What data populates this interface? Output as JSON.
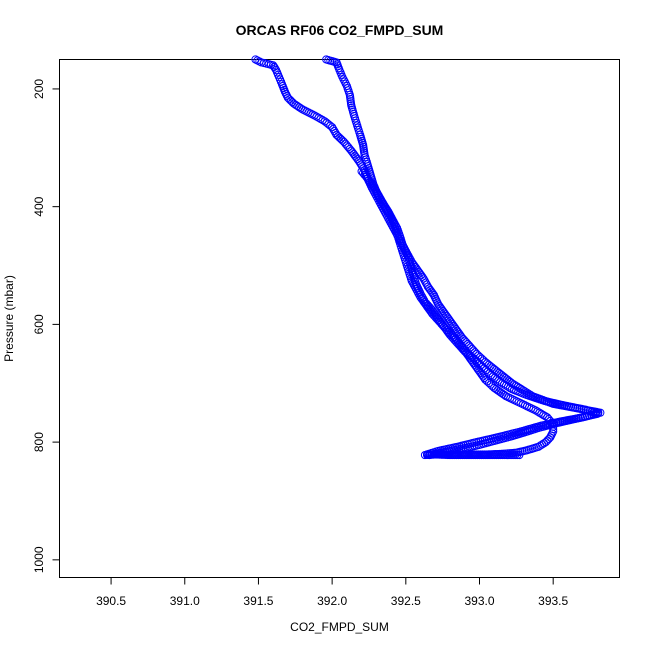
{
  "chart_data": {
    "type": "scatter",
    "title": "ORCAS RF06 CO2_FMPD_SUM",
    "xlabel": "CO2_FMPD_SUM",
    "ylabel": "Pressure (mbar)",
    "xlim": [
      390.15,
      393.95
    ],
    "ylim": [
      1030,
      150
    ],
    "x_ticks": [
      390.5,
      391.0,
      391.5,
      392.0,
      392.5,
      393.0,
      393.5
    ],
    "x_tick_labels": [
      "390.5",
      "391.0",
      "391.5",
      "392.0",
      "392.5",
      "393.0",
      "393.5"
    ],
    "y_ticks": [
      200,
      400,
      600,
      800,
      1000
    ],
    "y_tick_labels": [
      "200",
      "400",
      "600",
      "800",
      "1000"
    ],
    "y_reversed": true,
    "marker": "open-circle",
    "color": "#0000ff",
    "grid": false,
    "series": [
      {
        "values": [
          [
            391.48,
            150
          ],
          [
            391.52,
            155
          ],
          [
            391.57,
            158
          ],
          [
            391.6,
            160
          ],
          [
            391.62,
            168
          ],
          [
            391.64,
            180
          ],
          [
            391.66,
            192
          ],
          [
            391.68,
            205
          ],
          [
            391.7,
            215
          ],
          [
            391.74,
            225
          ],
          [
            391.8,
            235
          ],
          [
            391.88,
            245
          ],
          [
            391.95,
            255
          ],
          [
            392.0,
            265
          ],
          [
            392.03,
            278
          ],
          [
            392.08,
            290
          ],
          [
            392.13,
            305
          ],
          [
            392.18,
            322
          ],
          [
            392.22,
            338
          ],
          [
            392.24,
            352
          ],
          [
            392.27,
            368
          ],
          [
            392.3,
            382
          ],
          [
            392.33,
            396
          ],
          [
            392.36,
            410
          ],
          [
            392.39,
            424
          ],
          [
            392.42,
            438
          ],
          [
            392.45,
            452
          ],
          [
            392.48,
            466
          ],
          [
            392.51,
            480
          ],
          [
            392.54,
            494
          ],
          [
            392.58,
            508
          ],
          [
            392.62,
            522
          ],
          [
            392.65,
            536
          ],
          [
            392.69,
            550
          ],
          [
            392.72,
            566
          ],
          [
            392.76,
            580
          ],
          [
            392.8,
            594
          ],
          [
            392.84,
            608
          ],
          [
            392.88,
            622
          ],
          [
            392.93,
            636
          ],
          [
            392.98,
            650
          ],
          [
            393.04,
            664
          ],
          [
            393.12,
            680
          ],
          [
            393.22,
            700
          ],
          [
            393.36,
            722
          ],
          [
            393.5,
            735
          ],
          [
            393.65,
            742
          ],
          [
            393.82,
            750
          ],
          [
            393.7,
            758
          ],
          [
            393.55,
            765
          ],
          [
            393.42,
            772
          ],
          [
            393.28,
            782
          ],
          [
            393.12,
            792
          ],
          [
            392.98,
            800
          ],
          [
            392.85,
            808
          ],
          [
            392.72,
            815
          ],
          [
            392.63,
            822
          ],
          [
            392.7,
            821
          ],
          [
            392.8,
            822
          ],
          [
            392.9,
            822
          ],
          [
            393.0,
            822
          ],
          [
            393.1,
            822
          ],
          [
            393.2,
            822
          ],
          [
            393.27,
            822
          ]
        ]
      },
      {
        "values": [
          [
            391.96,
            150
          ],
          [
            392.03,
            155
          ],
          [
            392.05,
            168
          ],
          [
            392.07,
            180
          ],
          [
            392.1,
            195
          ],
          [
            392.12,
            210
          ],
          [
            392.13,
            228
          ],
          [
            392.15,
            246
          ],
          [
            392.17,
            262
          ],
          [
            392.19,
            278
          ],
          [
            392.21,
            295
          ],
          [
            392.22,
            312
          ],
          [
            392.24,
            328
          ],
          [
            392.26,
            345
          ],
          [
            392.28,
            362
          ],
          [
            392.31,
            380
          ],
          [
            392.35,
            398
          ],
          [
            392.39,
            414
          ],
          [
            392.42,
            430
          ],
          [
            392.44,
            446
          ],
          [
            392.46,
            462
          ],
          [
            392.48,
            478
          ],
          [
            392.5,
            494
          ],
          [
            392.52,
            510
          ],
          [
            392.54,
            526
          ],
          [
            392.57,
            540
          ],
          [
            392.6,
            554
          ],
          [
            392.64,
            568
          ],
          [
            392.68,
            582
          ],
          [
            392.73,
            596
          ],
          [
            392.78,
            610
          ],
          [
            392.84,
            624
          ],
          [
            392.88,
            638
          ],
          [
            392.92,
            652
          ],
          [
            392.96,
            666
          ],
          [
            393.0,
            680
          ],
          [
            393.04,
            694
          ],
          [
            393.1,
            708
          ],
          [
            393.18,
            722
          ],
          [
            393.28,
            734
          ],
          [
            393.38,
            746
          ],
          [
            393.46,
            758
          ],
          [
            393.5,
            770
          ],
          [
            393.5,
            782
          ],
          [
            393.48,
            792
          ],
          [
            393.45,
            800
          ],
          [
            393.4,
            808
          ],
          [
            393.32,
            814
          ],
          [
            393.25,
            818
          ],
          [
            393.15,
            820
          ],
          [
            393.05,
            821
          ],
          [
            392.95,
            821
          ],
          [
            392.85,
            821
          ],
          [
            392.75,
            821
          ],
          [
            392.65,
            821
          ]
        ]
      },
      {
        "values": [
          [
            392.2,
            340
          ],
          [
            392.26,
            358
          ],
          [
            392.3,
            374
          ],
          [
            392.34,
            392
          ],
          [
            392.38,
            408
          ],
          [
            392.41,
            422
          ],
          [
            392.44,
            436
          ],
          [
            392.46,
            450
          ],
          [
            392.48,
            466
          ],
          [
            392.51,
            482
          ],
          [
            392.53,
            498
          ],
          [
            392.55,
            516
          ],
          [
            392.57,
            532
          ],
          [
            392.6,
            548
          ],
          [
            392.63,
            562
          ],
          [
            392.68,
            576
          ],
          [
            392.72,
            590
          ],
          [
            392.76,
            604
          ],
          [
            392.8,
            618
          ],
          [
            392.85,
            632
          ],
          [
            392.9,
            646
          ],
          [
            392.96,
            658
          ],
          [
            393.02,
            672
          ],
          [
            393.08,
            686
          ],
          [
            393.14,
            698
          ],
          [
            393.22,
            710
          ],
          [
            393.32,
            720
          ],
          [
            393.44,
            730
          ],
          [
            393.58,
            738
          ],
          [
            393.72,
            745
          ],
          [
            393.8,
            752
          ],
          [
            393.66,
            760
          ],
          [
            393.52,
            768
          ],
          [
            393.4,
            776
          ],
          [
            393.3,
            784
          ],
          [
            393.22,
            790
          ],
          [
            393.1,
            798
          ],
          [
            392.98,
            806
          ],
          [
            392.86,
            812
          ],
          [
            392.74,
            818
          ],
          [
            392.66,
            822
          ]
        ]
      }
    ]
  }
}
